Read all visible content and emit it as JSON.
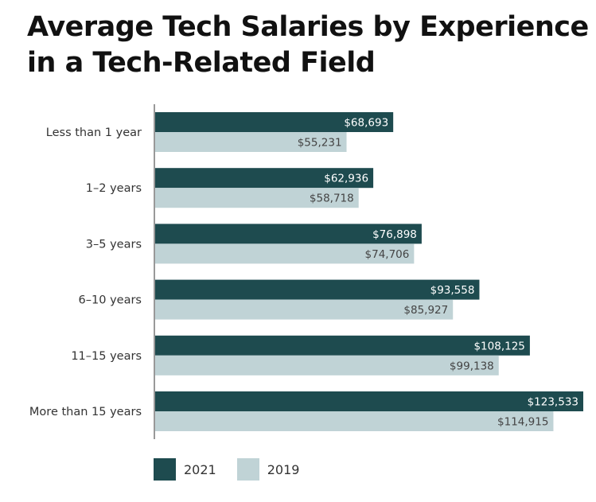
{
  "chart_data": {
    "type": "bar",
    "orientation": "horizontal",
    "title": "Average Tech Salaries by Experience in a Tech-Related Field",
    "categories": [
      "Less than 1 year",
      "1–2 years",
      "3–5 years",
      "6–10 years",
      "11–15 years",
      "More than 15 years"
    ],
    "series": [
      {
        "name": "2021",
        "color": "#1e4b4f",
        "label_color": "#ffffff",
        "values": [
          68693,
          62936,
          76898,
          93558,
          108125,
          123533
        ],
        "labels": [
          "$68,693",
          "$62,936",
          "$76,898",
          "$93,558",
          "$108,125",
          "$123,533"
        ]
      },
      {
        "name": "2019",
        "color": "#c0d3d6",
        "label_color": "#444444",
        "values": [
          55231,
          58718,
          74706,
          85927,
          99138,
          114915
        ],
        "labels": [
          "$55,231",
          "$58,718",
          "$74,706",
          "$85,927",
          "$99,138",
          "$114,915"
        ]
      }
    ],
    "xlim": [
      0,
      123533
    ],
    "xlabel": "",
    "ylabel": "",
    "grid": false,
    "legend_position": "bottom-left"
  }
}
